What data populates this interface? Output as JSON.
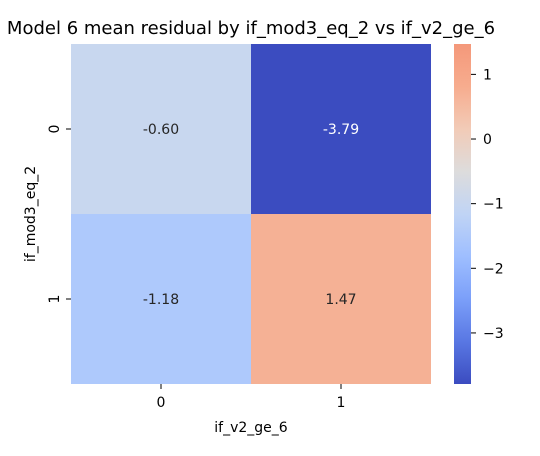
{
  "chart_data": {
    "type": "heatmap",
    "title": "Model 6 mean residual by if_mod3_eq_2 vs if_v2_ge_6",
    "xlabel": "if_v2_ge_6",
    "ylabel": "if_mod3_eq_2",
    "x_categories": [
      "0",
      "1"
    ],
    "y_categories": [
      "0",
      "1"
    ],
    "values": [
      [
        -0.6,
        -3.79
      ],
      [
        -1.18,
        1.47
      ]
    ],
    "value_labels": [
      [
        "-0.60",
        "-3.79"
      ],
      [
        "-1.18",
        "1.47"
      ]
    ],
    "colormap": "coolwarm",
    "colorbar": {
      "range": [
        -3.79,
        1.47
      ],
      "ticks": [
        -3,
        -2,
        -1,
        0,
        1
      ],
      "tick_labels": [
        "−3",
        "−2",
        "−1",
        "0",
        "1"
      ]
    },
    "cell_colors": [
      [
        "#c8d7ef",
        "#3b4cc0"
      ],
      [
        "#aec9fc",
        "#f5b195"
      ]
    ],
    "text_colors": [
      [
        "#262626",
        "#ffffff"
      ],
      [
        "#262626",
        "#262626"
      ]
    ]
  }
}
